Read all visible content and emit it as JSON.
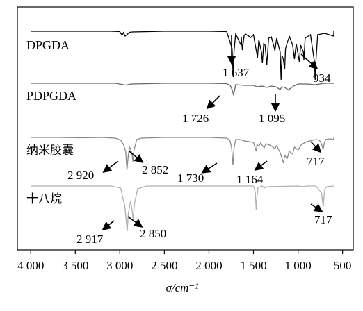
{
  "chart_data": {
    "type": "line",
    "title": "",
    "xlabel": "σ/cm⁻¹",
    "ylabel": "",
    "xlim": [
      4150,
      380
    ],
    "x_reversed": true,
    "ticks": [
      4000,
      3500,
      3000,
      2500,
      2000,
      1500,
      1000,
      500
    ],
    "tick_labels": [
      "4 000",
      "3 500",
      "3 000",
      "2 500",
      "2 000",
      "1 500",
      "1 000",
      "500"
    ],
    "series": [
      {
        "name": "DPGDA",
        "color": "#000000",
        "baseline_offset": 0,
        "points": [
          [
            4000,
            0
          ],
          [
            3100,
            0
          ],
          [
            3000,
            0.5
          ],
          [
            2975,
            6
          ],
          [
            2960,
            2
          ],
          [
            2940,
            7
          ],
          [
            2890,
            1.5
          ],
          [
            2860,
            1
          ],
          [
            2500,
            0
          ],
          [
            2000,
            0
          ],
          [
            1800,
            0.5
          ],
          [
            1740,
            25
          ],
          [
            1728,
            66
          ],
          [
            1718,
            28
          ],
          [
            1700,
            4
          ],
          [
            1640,
            20
          ],
          [
            1637,
            8
          ],
          [
            1625,
            27
          ],
          [
            1605,
            6
          ],
          [
            1590,
            4
          ],
          [
            1530,
            9
          ],
          [
            1500,
            5
          ],
          [
            1455,
            38
          ],
          [
            1440,
            12
          ],
          [
            1410,
            30
          ],
          [
            1400,
            46
          ],
          [
            1385,
            18
          ],
          [
            1370,
            20
          ],
          [
            1350,
            48
          ],
          [
            1330,
            10
          ],
          [
            1300,
            8
          ],
          [
            1270,
            22
          ],
          [
            1260,
            28
          ],
          [
            1240,
            10
          ],
          [
            1200,
            30
          ],
          [
            1190,
            70
          ],
          [
            1180,
            35
          ],
          [
            1165,
            40
          ],
          [
            1150,
            55
          ],
          [
            1140,
            25
          ],
          [
            1110,
            12
          ],
          [
            1095,
            8
          ],
          [
            1060,
            20
          ],
          [
            1040,
            40
          ],
          [
            1020,
            18
          ],
          [
            985,
            44
          ],
          [
            970,
            20
          ],
          [
            940,
            30
          ],
          [
            934,
            42
          ],
          [
            920,
            10
          ],
          [
            860,
            5
          ],
          [
            815,
            45
          ],
          [
            808,
            70
          ],
          [
            800,
            45
          ],
          [
            780,
            5
          ],
          [
            700,
            3
          ],
          [
            600,
            7
          ],
          [
            560,
            2
          ],
          [
            520,
            4
          ],
          [
            480,
            0
          ],
          [
            420,
            0
          ]
        ]
      },
      {
        "name": "PDPGDA",
        "color": "#666666",
        "baseline_offset": 73,
        "points": [
          [
            4000,
            0
          ],
          [
            3050,
            0
          ],
          [
            2960,
            2
          ],
          [
            2930,
            2.5
          ],
          [
            2870,
            1
          ],
          [
            2500,
            0
          ],
          [
            2000,
            0
          ],
          [
            1800,
            0.5
          ],
          [
            1760,
            3
          ],
          [
            1735,
            11
          ],
          [
            1726,
            16
          ],
          [
            1715,
            12
          ],
          [
            1700,
            2
          ],
          [
            1600,
            3
          ],
          [
            1500,
            3
          ],
          [
            1460,
            5
          ],
          [
            1400,
            4
          ],
          [
            1350,
            6
          ],
          [
            1300,
            4
          ],
          [
            1250,
            5
          ],
          [
            1200,
            9
          ],
          [
            1180,
            5
          ],
          [
            1150,
            6
          ],
          [
            1100,
            10
          ],
          [
            1095,
            8
          ],
          [
            1080,
            7
          ],
          [
            1050,
            4
          ],
          [
            1000,
            1
          ],
          [
            900,
            1
          ],
          [
            810,
            2
          ],
          [
            700,
            0
          ],
          [
            420,
            0
          ]
        ]
      },
      {
        "name": "纳米胶囊",
        "color": "#8a8a8a",
        "baseline_offset": 153,
        "points": [
          [
            4000,
            0
          ],
          [
            3700,
            0
          ],
          [
            3450,
            0.5
          ],
          [
            3200,
            0
          ],
          [
            3050,
            1
          ],
          [
            2990,
            4
          ],
          [
            2960,
            10
          ],
          [
            2935,
            20
          ],
          [
            2920,
            47
          ],
          [
            2905,
            26
          ],
          [
            2890,
            14
          ],
          [
            2865,
            22
          ],
          [
            2852,
            35
          ],
          [
            2840,
            18
          ],
          [
            2810,
            3
          ],
          [
            2760,
            1
          ],
          [
            2500,
            0
          ],
          [
            2000,
            0
          ],
          [
            1800,
            1
          ],
          [
            1765,
            4
          ],
          [
            1745,
            15
          ],
          [
            1730,
            40
          ],
          [
            1718,
            15
          ],
          [
            1700,
            3
          ],
          [
            1650,
            3
          ],
          [
            1600,
            5
          ],
          [
            1500,
            7
          ],
          [
            1470,
            20
          ],
          [
            1460,
            10
          ],
          [
            1440,
            13
          ],
          [
            1420,
            8
          ],
          [
            1380,
            15
          ],
          [
            1360,
            9
          ],
          [
            1300,
            12
          ],
          [
            1260,
            16
          ],
          [
            1240,
            12
          ],
          [
            1200,
            22
          ],
          [
            1180,
            30
          ],
          [
            1164,
            37
          ],
          [
            1150,
            26
          ],
          [
            1120,
            30
          ],
          [
            1100,
            20
          ],
          [
            1060,
            24
          ],
          [
            1040,
            14
          ],
          [
            1000,
            18
          ],
          [
            960,
            10
          ],
          [
            900,
            6
          ],
          [
            800,
            3
          ],
          [
            760,
            4
          ],
          [
            740,
            8
          ],
          [
            725,
            14
          ],
          [
            717,
            17
          ],
          [
            705,
            8
          ],
          [
            690,
            3
          ],
          [
            650,
            2
          ],
          [
            600,
            3
          ],
          [
            420,
            0
          ]
        ]
      },
      {
        "name": "十八烷",
        "color": "#b0b0b0",
        "baseline_offset": 235,
        "points": [
          [
            4000,
            0
          ],
          [
            3100,
            0
          ],
          [
            2990,
            3
          ],
          [
            2965,
            18
          ],
          [
            2945,
            28
          ],
          [
            2917,
            65
          ],
          [
            2905,
            40
          ],
          [
            2880,
            22
          ],
          [
            2865,
            32
          ],
          [
            2850,
            48
          ],
          [
            2835,
            25
          ],
          [
            2800,
            4
          ],
          [
            2700,
            0
          ],
          [
            2000,
            0
          ],
          [
            1500,
            0
          ],
          [
            1480,
            9
          ],
          [
            1470,
            34
          ],
          [
            1462,
            18
          ],
          [
            1450,
            2
          ],
          [
            1400,
            0
          ],
          [
            1380,
            3
          ],
          [
            1350,
            1
          ],
          [
            1000,
            0
          ],
          [
            950,
            1
          ],
          [
            900,
            0
          ],
          [
            800,
            0
          ],
          [
            735,
            10
          ],
          [
            725,
            22
          ],
          [
            717,
            30
          ],
          [
            710,
            18
          ],
          [
            700,
            5
          ],
          [
            680,
            1
          ],
          [
            420,
            0
          ]
        ]
      }
    ],
    "annotations": [
      {
        "text": "1 637",
        "series": "DPGDA",
        "x": 1637
      },
      {
        "text": "934",
        "series": "DPGDA",
        "x": 934
      },
      {
        "text": "1 726",
        "series": "PDPGDA",
        "x": 1726
      },
      {
        "text": "1 095",
        "series": "PDPGDA",
        "x": 1095
      },
      {
        "text": "2 920",
        "series": "纳米胶囊",
        "x": 2920
      },
      {
        "text": "2 852",
        "series": "纳米胶囊",
        "x": 2852
      },
      {
        "text": "1 730",
        "series": "纳米胶囊",
        "x": 1730
      },
      {
        "text": "1 164",
        "series": "纳米胶囊",
        "x": 1164
      },
      {
        "text": "717",
        "series": "纳米胶囊",
        "x": 717
      },
      {
        "text": "2 917",
        "series": "十八烷",
        "x": 2917
      },
      {
        "text": "2 850",
        "series": "十八烷",
        "x": 2850
      },
      {
        "text": "717",
        "series": "十八烷",
        "x": 717
      }
    ]
  }
}
